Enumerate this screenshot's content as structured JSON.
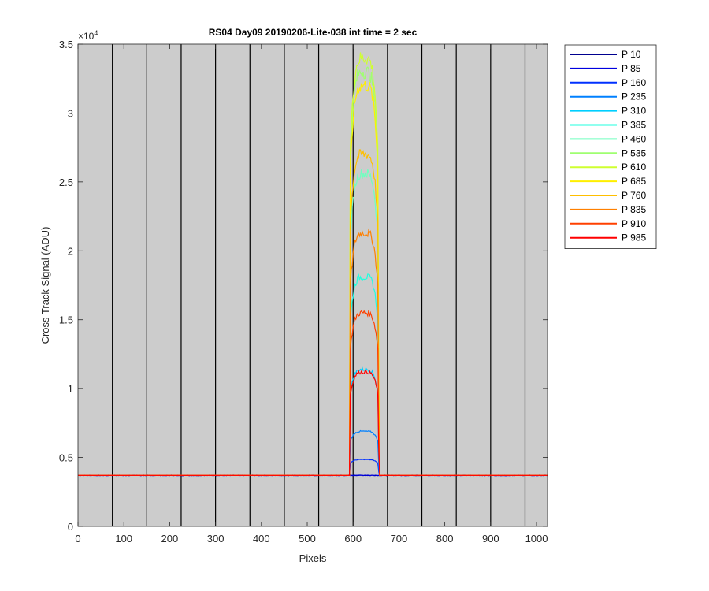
{
  "chart_data": {
    "type": "line",
    "title": "RS04 Day09 20190206-Lite-038 int time = 2 sec",
    "xlabel": "Pixels",
    "ylabel": "Cross Track Signal (ADU)",
    "xlim": [
      0,
      1024
    ],
    "ylim": [
      0,
      35000
    ],
    "x_ticks": [
      0,
      100,
      200,
      300,
      400,
      500,
      600,
      700,
      800,
      900,
      1000
    ],
    "x_tick_labels": [
      "0",
      "100",
      "200",
      "300",
      "400",
      "500",
      "600",
      "700",
      "800",
      "900",
      "1000"
    ],
    "y_ticks": [
      0,
      5000,
      10000,
      15000,
      20000,
      25000,
      30000,
      35000
    ],
    "y_tick_labels": [
      "0",
      "0.5",
      "1",
      "1.5",
      "2",
      "2.5",
      "3",
      "3.5"
    ],
    "y_exponent_label": "×10",
    "y_exponent_power": "4",
    "plot_background": "#cccccc",
    "vertical_lines_x": [
      75,
      150,
      225,
      300,
      375,
      450,
      525,
      600,
      675,
      750,
      825,
      900,
      975
    ],
    "baseline": 3700,
    "plateau_x_range": [
      594,
      654
    ],
    "legend_position": "outside-right",
    "series": [
      {
        "name": "P 10",
        "color": "#00008f",
        "peak": 3700
      },
      {
        "name": "P 85",
        "color": "#0000df",
        "peak": 3700
      },
      {
        "name": "P 160",
        "color": "#0030ff",
        "peak": 4850
      },
      {
        "name": "P 235",
        "color": "#0080ff",
        "peak": 6900
      },
      {
        "name": "P 310",
        "color": "#00cfff",
        "peak": 11400
      },
      {
        "name": "P 385",
        "color": "#20ffdf",
        "peak": 18100
      },
      {
        "name": "P 460",
        "color": "#70ffbf",
        "peak": 25600
      },
      {
        "name": "P 535",
        "color": "#9fff70",
        "peak": 33000
      },
      {
        "name": "P 610",
        "color": "#cfff30",
        "peak": 34000
      },
      {
        "name": "P 685",
        "color": "#ffef00",
        "peak": 32000
      },
      {
        "name": "P 760",
        "color": "#ffbf00",
        "peak": 27000
      },
      {
        "name": "P 835",
        "color": "#ff8000",
        "peak": 21300
      },
      {
        "name": "P 910",
        "color": "#ff4000",
        "peak": 15500
      },
      {
        "name": "P 985",
        "color": "#ff0000",
        "peak": 11200
      }
    ]
  }
}
